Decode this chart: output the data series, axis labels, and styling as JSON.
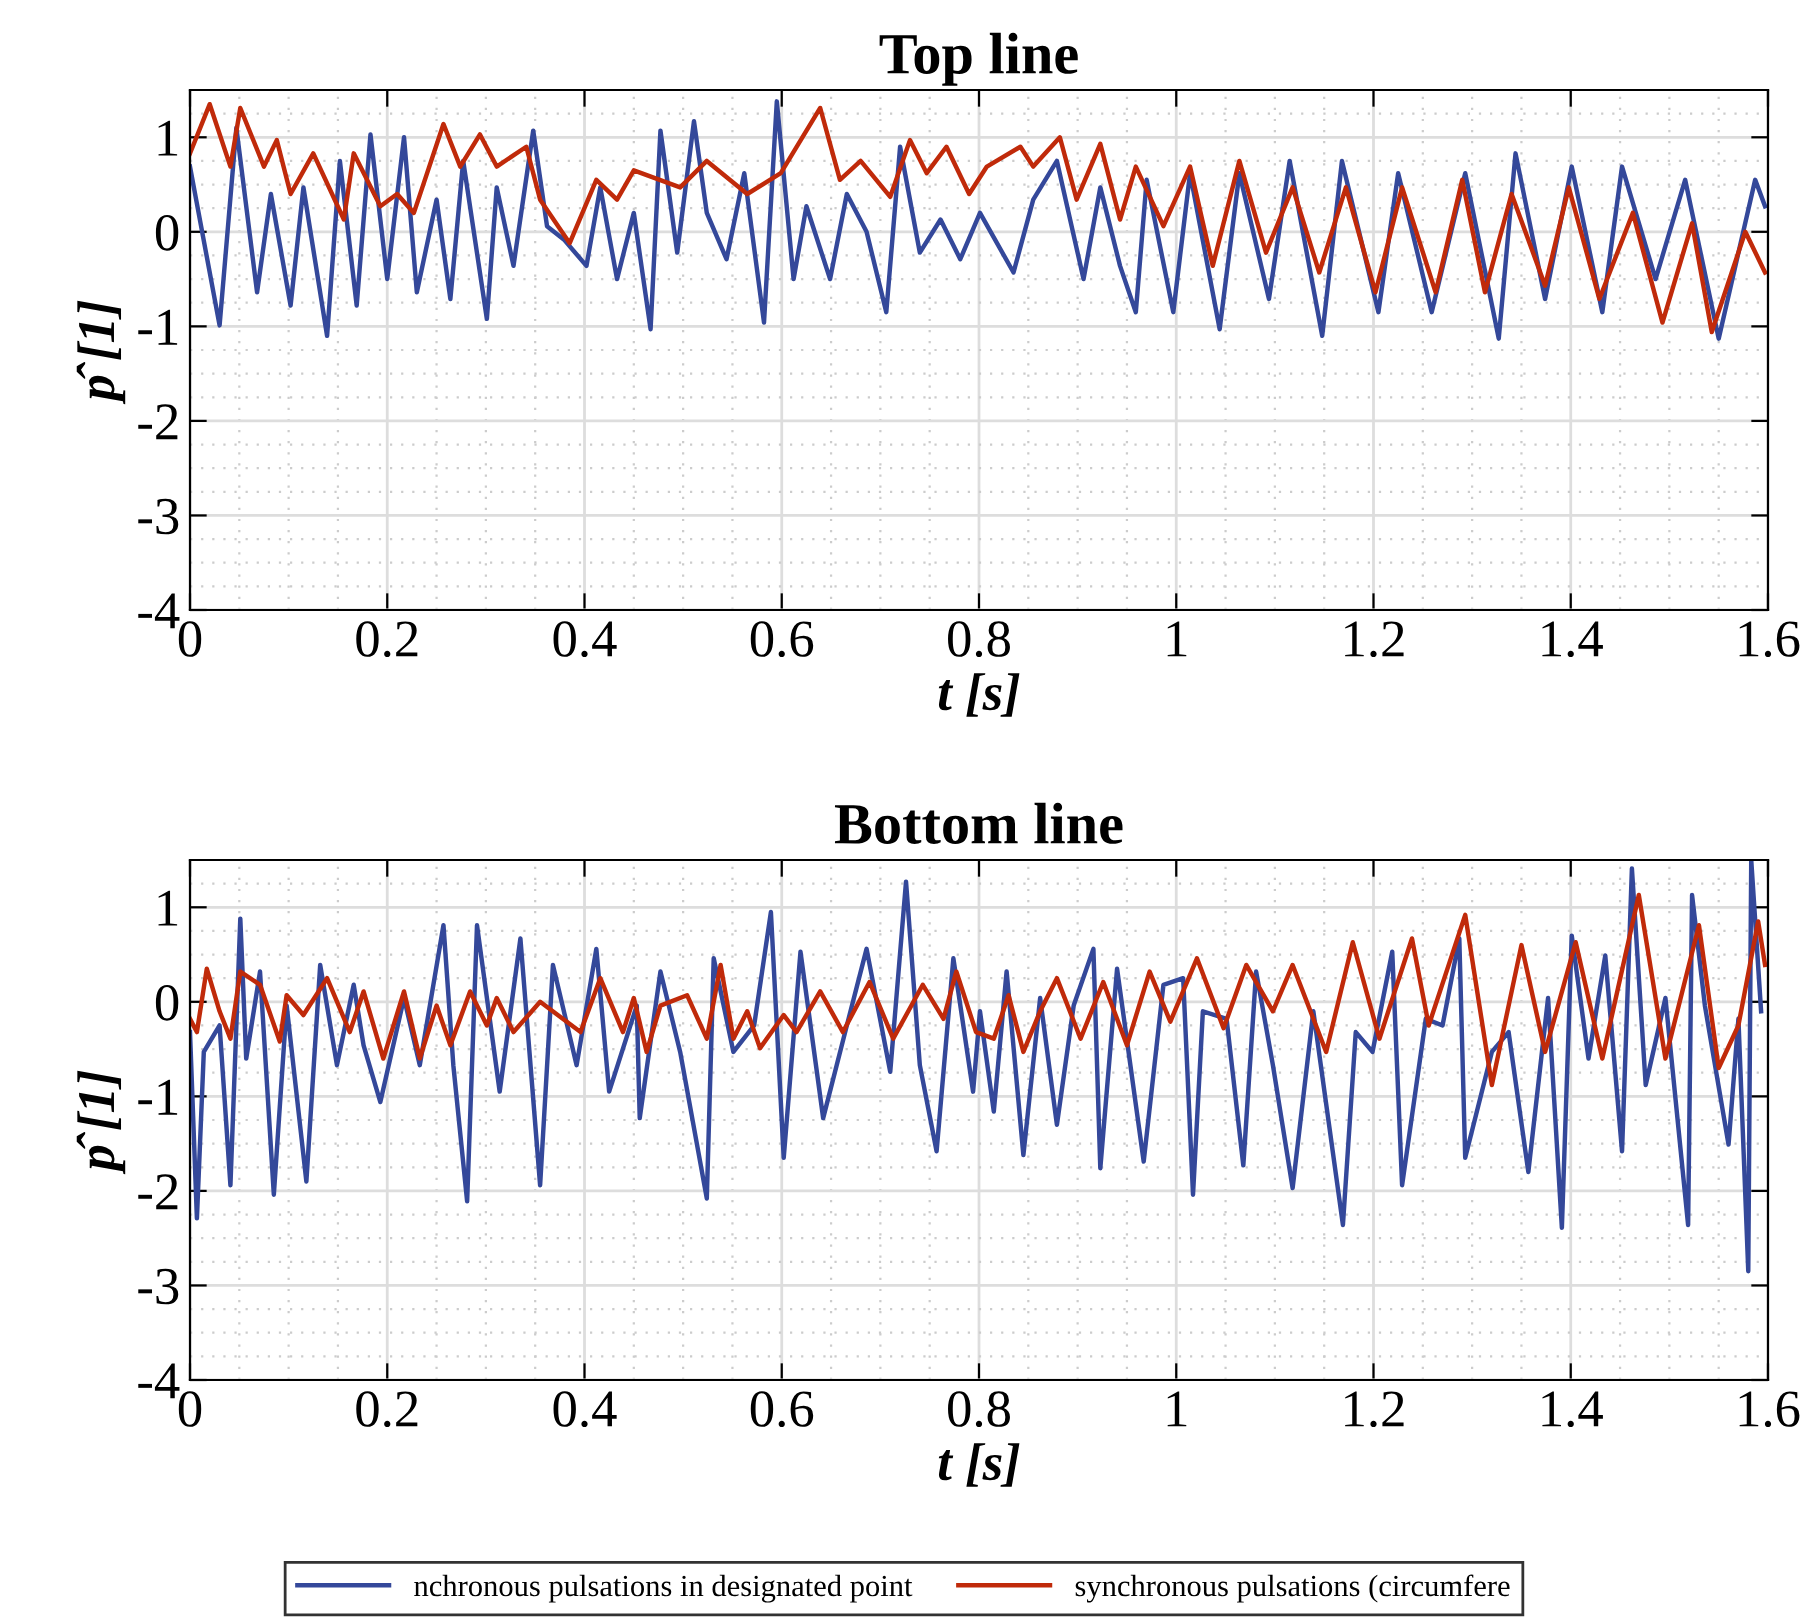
{
  "chart_data": [
    {
      "type": "line",
      "title": "Top line",
      "xlabel": "t [s]",
      "ylabel": "p̂ [1]",
      "xlim": [
        0,
        1.6
      ],
      "ylim": [
        -4,
        1.5
      ],
      "xticks": [
        0,
        0.2,
        0.4,
        0.6,
        0.8,
        1,
        1.2,
        1.4,
        1.6
      ],
      "yticks": [
        -4,
        -3,
        -2,
        -1,
        0,
        1
      ],
      "grid": true,
      "line_style": "solid",
      "marker": "none",
      "legend": "bottom",
      "series": [
        {
          "name": "nchronous pulsations in designated point",
          "color": "#34489a",
          "x": [
            0,
            0.03,
            0.047,
            0.068,
            0.082,
            0.102,
            0.115,
            0.139,
            0.152,
            0.169,
            0.183,
            0.2,
            0.217,
            0.23,
            0.25,
            0.264,
            0.277,
            0.301,
            0.311,
            0.328,
            0.348,
            0.362,
            0.379,
            0.402,
            0.416,
            0.433,
            0.45,
            0.467,
            0.477,
            0.494,
            0.511,
            0.524,
            0.544,
            0.562,
            0.582,
            0.595,
            0.612,
            0.625,
            0.649,
            0.666,
            0.686,
            0.706,
            0.72,
            0.74,
            0.761,
            0.781,
            0.801,
            0.835,
            0.855,
            0.879,
            0.906,
            0.923,
            0.943,
            0.959,
            0.97,
            0.997,
            1.014,
            1.044,
            1.064,
            1.094,
            1.115,
            1.148,
            1.168,
            1.205,
            1.225,
            1.259,
            1.293,
            1.327,
            1.344,
            1.374,
            1.401,
            1.432,
            1.452,
            1.486,
            1.516,
            1.55,
            1.587,
            1.597
          ],
          "values": [
            0.69,
            -0.99,
            1.1,
            -0.64,
            0.4,
            -0.78,
            0.47,
            -1.1,
            0.75,
            -0.78,
            1.03,
            -0.5,
            1.0,
            -0.64,
            0.34,
            -0.71,
            0.75,
            -0.92,
            0.47,
            -0.36,
            1.07,
            0.06,
            -0.08,
            -0.36,
            0.47,
            -0.5,
            0.2,
            -1.03,
            1.07,
            -0.22,
            1.17,
            0.2,
            -0.29,
            0.62,
            -0.96,
            1.38,
            -0.5,
            0.27,
            -0.5,
            0.4,
            0,
            -0.85,
            0.9,
            -0.22,
            0.13,
            -0.29,
            0.2,
            -0.43,
            0.34,
            0.75,
            -0.5,
            0.47,
            -0.36,
            -0.85,
            0.55,
            -0.85,
            0.62,
            -1.03,
            0.62,
            -0.71,
            0.75,
            -1.1,
            0.75,
            -0.85,
            0.62,
            -0.85,
            0.62,
            -1.13,
            0.83,
            -0.71,
            0.69,
            -0.85,
            0.69,
            -0.5,
            0.55,
            -1.13,
            0.55,
            0.27
          ]
        },
        {
          "name": "synchronous pulsations (circumfere",
          "color": "#c02a0a",
          "x": [
            0,
            0.02,
            0.041,
            0.051,
            0.075,
            0.088,
            0.102,
            0.125,
            0.156,
            0.166,
            0.193,
            0.21,
            0.227,
            0.257,
            0.274,
            0.294,
            0.311,
            0.341,
            0.355,
            0.385,
            0.412,
            0.433,
            0.45,
            0.497,
            0.524,
            0.565,
            0.599,
            0.639,
            0.659,
            0.68,
            0.71,
            0.73,
            0.747,
            0.767,
            0.79,
            0.808,
            0.842,
            0.855,
            0.882,
            0.899,
            0.923,
            0.943,
            0.959,
            0.987,
            1.014,
            1.037,
            1.064,
            1.091,
            1.118,
            1.145,
            1.172,
            1.202,
            1.229,
            1.263,
            1.29,
            1.313,
            1.34,
            1.374,
            1.398,
            1.429,
            1.463,
            1.493,
            1.523,
            1.543,
            1.577,
            1.597
          ],
          "values": [
            0.83,
            1.35,
            0.69,
            1.31,
            0.69,
            0.97,
            0.4,
            0.83,
            0.13,
            0.83,
            0.27,
            0.4,
            0.2,
            1.14,
            0.69,
            1.03,
            0.69,
            0.9,
            0.34,
            -0.12,
            0.55,
            0.34,
            0.65,
            0.47,
            0.75,
            0.4,
            0.62,
            1.31,
            0.55,
            0.75,
            0.37,
            0.97,
            0.62,
            0.9,
            0.4,
            0.69,
            0.9,
            0.69,
            1.0,
            0.34,
            0.93,
            0.13,
            0.69,
            0.06,
            0.69,
            -0.36,
            0.75,
            -0.22,
            0.47,
            -0.43,
            0.47,
            -0.64,
            0.47,
            -0.64,
            0.55,
            -0.64,
            0.4,
            -0.57,
            0.47,
            -0.71,
            0.2,
            -0.96,
            0.09,
            -1.06,
            0,
            -0.43
          ]
        }
      ]
    },
    {
      "type": "line",
      "title": "Bottom line",
      "xlabel": "t [s]",
      "ylabel": "p̂ [1]",
      "xlim": [
        0,
        1.6
      ],
      "ylim": [
        -4,
        1.5
      ],
      "xticks": [
        0,
        0.2,
        0.4,
        0.6,
        0.8,
        1,
        1.2,
        1.4,
        1.6
      ],
      "yticks": [
        -4,
        -3,
        -2,
        -1,
        0,
        1
      ],
      "grid": true,
      "line_style": "solid",
      "marker": "none",
      "legend": "bottom",
      "series": [
        {
          "name": "nchronous pulsations in designated point",
          "color": "#34489a",
          "x": [
            0,
            0.007,
            0.014,
            0.03,
            0.041,
            0.051,
            0.057,
            0.071,
            0.085,
            0.098,
            0.118,
            0.132,
            0.149,
            0.166,
            0.176,
            0.193,
            0.217,
            0.233,
            0.257,
            0.267,
            0.281,
            0.291,
            0.314,
            0.335,
            0.355,
            0.368,
            0.392,
            0.412,
            0.425,
            0.453,
            0.456,
            0.477,
            0.497,
            0.524,
            0.531,
            0.551,
            0.572,
            0.589,
            0.602,
            0.619,
            0.642,
            0.666,
            0.686,
            0.71,
            0.726,
            0.74,
            0.757,
            0.774,
            0.794,
            0.801,
            0.815,
            0.828,
            0.845,
            0.862,
            0.879,
            0.896,
            0.916,
            0.923,
            0.94,
            0.967,
            0.987,
            1.007,
            1.017,
            1.027,
            1.051,
            1.068,
            1.081,
            1.098,
            1.118,
            1.139,
            1.169,
            1.182,
            1.199,
            1.219,
            1.229,
            1.253,
            1.27,
            1.287,
            1.293,
            1.32,
            1.337,
            1.357,
            1.377,
            1.391,
            1.401,
            1.418,
            1.435,
            1.452,
            1.462,
            1.476,
            1.496,
            1.519,
            1.523,
            1.536,
            1.56,
            1.57,
            1.58,
            1.583,
            1.593
          ],
          "values": [
            -0.32,
            -2.29,
            -0.53,
            -0.25,
            -1.94,
            0.88,
            -0.6,
            0.32,
            -2.04,
            -0.04,
            -1.9,
            0.39,
            -0.67,
            0.18,
            -0.46,
            -1.06,
            0.04,
            -0.67,
            0.81,
            -0.67,
            -2.11,
            0.81,
            -0.95,
            0.67,
            -1.94,
            0.39,
            -0.67,
            0.56,
            -0.95,
            -0.04,
            -1.23,
            0.32,
            -0.53,
            -2.08,
            0.46,
            -0.53,
            -0.25,
            0.95,
            -1.65,
            0.53,
            -1.23,
            -0.25,
            0.56,
            -0.74,
            1.27,
            -0.67,
            -1.58,
            0.46,
            -0.95,
            -0.1,
            -1.16,
            0.32,
            -1.62,
            0.04,
            -1.3,
            -0.04,
            0.56,
            -1.76,
            0.35,
            -1.69,
            0.18,
            0.25,
            -2.04,
            -0.1,
            -0.18,
            -1.73,
            0.32,
            -0.67,
            -1.97,
            -0.1,
            -2.36,
            -0.32,
            -0.53,
            0.53,
            -1.94,
            -0.18,
            -0.25,
            0.67,
            -1.65,
            -0.53,
            -0.32,
            -1.8,
            0.04,
            -2.39,
            0.7,
            -0.6,
            0.49,
            -1.58,
            1.41,
            -0.88,
            0.04,
            -2.36,
            1.13,
            -0.04,
            -1.51,
            -0.18,
            -2.85,
            1.5,
            -0.1
          ]
        },
        {
          "name": "synchronous pulsations (circumfere",
          "color": "#c02a0a",
          "x": [
            0,
            0.007,
            0.017,
            0.03,
            0.041,
            0.051,
            0.071,
            0.091,
            0.098,
            0.115,
            0.139,
            0.162,
            0.176,
            0.196,
            0.217,
            0.233,
            0.25,
            0.264,
            0.284,
            0.301,
            0.311,
            0.328,
            0.355,
            0.396,
            0.416,
            0.439,
            0.45,
            0.463,
            0.477,
            0.504,
            0.524,
            0.538,
            0.551,
            0.565,
            0.578,
            0.602,
            0.615,
            0.639,
            0.662,
            0.689,
            0.713,
            0.743,
            0.764,
            0.777,
            0.797,
            0.815,
            0.83,
            0.845,
            0.862,
            0.879,
            0.903,
            0.926,
            0.95,
            0.973,
            0.994,
            1.021,
            1.048,
            1.071,
            1.098,
            1.118,
            1.152,
            1.179,
            1.206,
            1.239,
            1.256,
            1.293,
            1.32,
            1.35,
            1.374,
            1.405,
            1.432,
            1.469,
            1.496,
            1.53,
            1.55,
            1.57,
            1.59,
            1.597
          ],
          "values": [
            -0.18,
            -0.32,
            0.35,
            -0.1,
            -0.39,
            0.32,
            0.18,
            -0.42,
            0.07,
            -0.14,
            0.25,
            -0.32,
            0.11,
            -0.6,
            0.11,
            -0.6,
            -0.04,
            -0.46,
            0.11,
            -0.25,
            0.04,
            -0.32,
            0,
            -0.32,
            0.25,
            -0.32,
            0.04,
            -0.53,
            -0.04,
            0.07,
            -0.39,
            0.39,
            -0.39,
            -0.1,
            -0.49,
            -0.14,
            -0.32,
            0.11,
            -0.32,
            0.21,
            -0.39,
            0.18,
            -0.18,
            0.32,
            -0.32,
            -0.39,
            0.07,
            -0.53,
            -0.1,
            0.25,
            -0.39,
            0.21,
            -0.46,
            0.32,
            -0.21,
            0.46,
            -0.28,
            0.39,
            -0.1,
            0.39,
            -0.53,
            0.63,
            -0.39,
            0.67,
            -0.25,
            0.92,
            -0.88,
            0.6,
            -0.53,
            0.63,
            -0.6,
            1.13,
            -0.6,
            0.81,
            -0.7,
            -0.25,
            0.85,
            0.39
          ]
        }
      ]
    }
  ]
}
